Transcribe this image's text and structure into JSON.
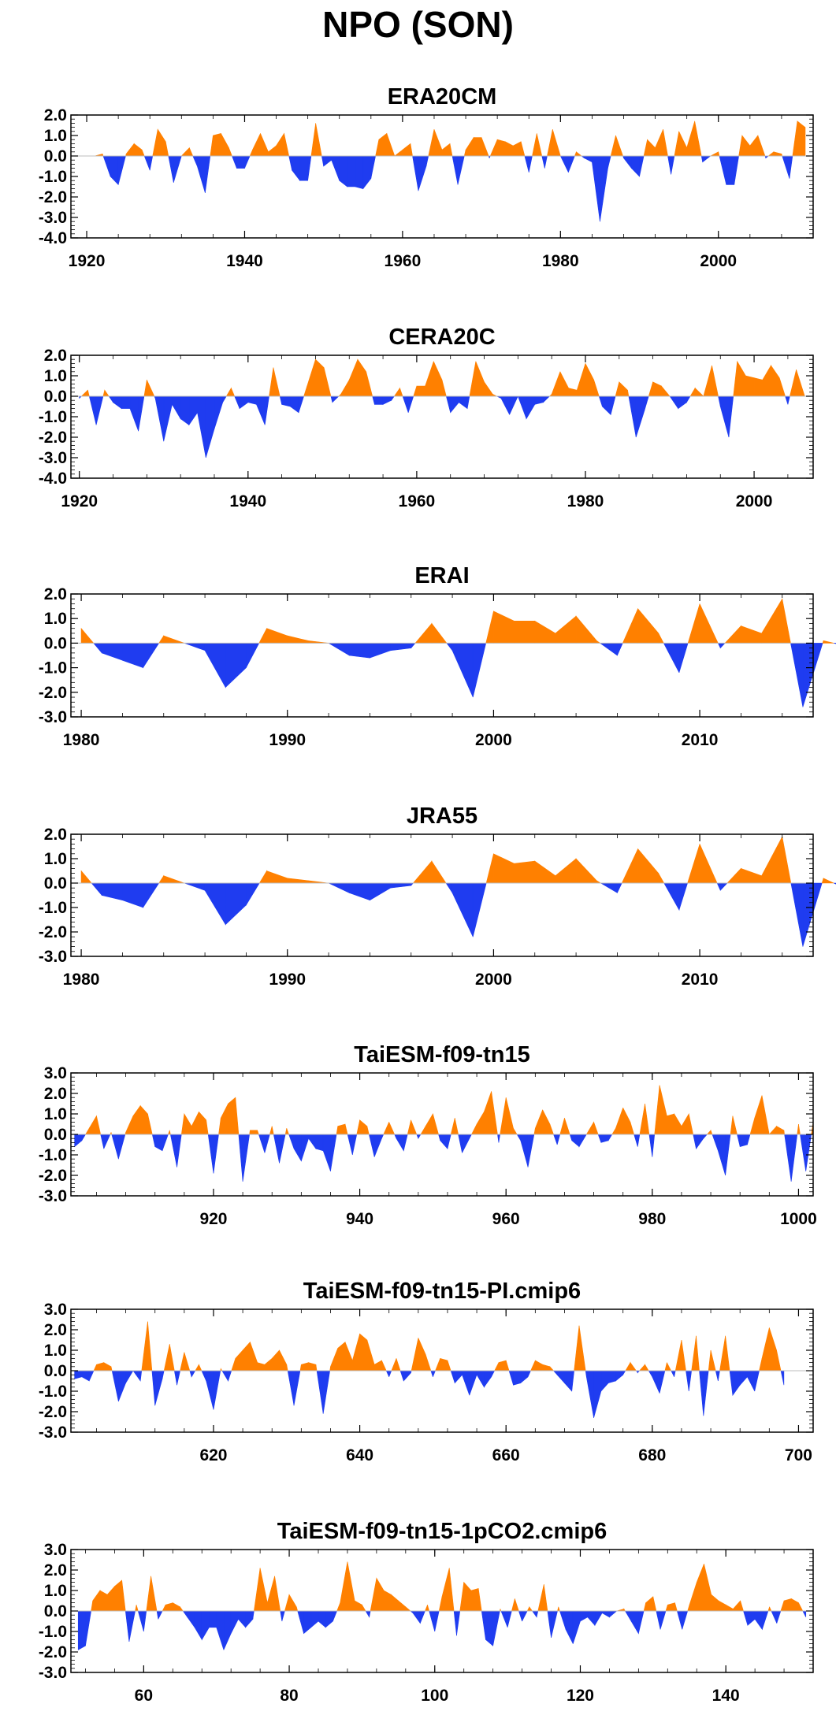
{
  "title": "NPO (SON)",
  "colors": {
    "positive": "#FF8000",
    "negative": "#1F3CF0",
    "frame": "#000000"
  },
  "chart_data": [
    {
      "type": "area",
      "title": "ERA20CM",
      "xlabel": "",
      "ylabel": "",
      "xlim": [
        1918,
        2012
      ],
      "ylim": [
        -4.0,
        2.0
      ],
      "x_ticks": [
        1920,
        1940,
        1960,
        1980,
        2000
      ],
      "y_ticks": [
        2.0,
        1.0,
        0.0,
        -1.0,
        -2.0,
        -3.0,
        -4.0
      ],
      "y_tick_labels": [
        "2.0",
        "1.0",
        "0.0",
        "-1.0",
        "-2.0",
        "-3.0",
        "-4.0"
      ],
      "grid": false,
      "legend": "none",
      "x_start": 1921,
      "x_step": 1,
      "values": [
        0.0,
        0.1,
        -1.0,
        -1.4,
        0.1,
        0.6,
        0.3,
        -0.7,
        1.3,
        0.7,
        -1.3,
        0.0,
        0.4,
        -0.5,
        -1.8,
        1.0,
        1.1,
        0.4,
        -0.6,
        -0.6,
        0.3,
        1.1,
        0.2,
        0.5,
        1.1,
        -0.7,
        -1.2,
        -1.2,
        1.6,
        -0.5,
        -0.2,
        -1.2,
        -1.5,
        -1.5,
        -1.6,
        -1.1,
        0.8,
        1.1,
        0.0,
        0.3,
        0.6,
        -1.7,
        -0.5,
        1.3,
        0.3,
        0.6,
        -1.4,
        0.3,
        0.9,
        0.9,
        -0.1,
        0.8,
        0.7,
        0.5,
        0.7,
        -0.8,
        1.1,
        -0.6,
        1.3,
        0.0,
        -0.8,
        0.2,
        -0.1,
        -0.3,
        -3.2,
        -0.6,
        1.0,
        -0.1,
        -0.6,
        -1.0,
        0.8,
        0.4,
        1.3,
        -0.9,
        1.2,
        0.4,
        1.7,
        -0.3,
        0.0,
        0.2,
        -1.4,
        -1.4,
        1.0,
        0.5,
        1.0,
        -0.1,
        0.2,
        0.1,
        -1.1,
        1.7,
        1.4
      ]
    },
    {
      "type": "area",
      "title": "CERA20C",
      "xlabel": "",
      "ylabel": "",
      "xlim": [
        1919,
        2007
      ],
      "ylim": [
        -4.0,
        2.0
      ],
      "x_ticks": [
        1920,
        1940,
        1960,
        1980,
        2000
      ],
      "y_ticks": [
        2.0,
        1.0,
        0.0,
        -1.0,
        -2.0,
        -3.0,
        -4.0
      ],
      "y_tick_labels": [
        "2.0",
        "1.0",
        "0.0",
        "-1.0",
        "-2.0",
        "-3.0",
        "-4.0"
      ],
      "grid": false,
      "legend": "none",
      "x_start": 1920,
      "x_step": 1,
      "values": [
        -0.1,
        0.3,
        -1.4,
        0.3,
        -0.3,
        -0.6,
        -0.6,
        -1.7,
        0.8,
        -0.1,
        -2.2,
        -0.4,
        -1.1,
        -1.4,
        -0.8,
        -3.0,
        -1.6,
        -0.3,
        0.4,
        -0.6,
        -0.3,
        -0.4,
        -1.4,
        1.4,
        -0.4,
        -0.5,
        -0.8,
        0.5,
        1.8,
        1.4,
        -0.3,
        0.1,
        0.8,
        1.8,
        1.2,
        -0.4,
        -0.4,
        -0.2,
        0.4,
        -0.8,
        0.5,
        0.5,
        1.7,
        0.8,
        -0.8,
        -0.3,
        -0.6,
        1.7,
        0.7,
        0.1,
        -0.1,
        -0.9,
        0.0,
        -1.1,
        -0.4,
        -0.3,
        0.1,
        1.2,
        0.4,
        0.3,
        1.6,
        0.8,
        -0.5,
        -0.9,
        0.7,
        0.3,
        -2.0,
        -0.7,
        0.7,
        0.5,
        0.0,
        -0.6,
        -0.3,
        0.4,
        0.0,
        1.5,
        -0.5,
        -2.0,
        1.7,
        1.0,
        0.9,
        0.8,
        1.5,
        0.9,
        -0.4,
        1.3,
        0.0
      ]
    },
    {
      "type": "area",
      "title": "ERAI",
      "xlabel": "",
      "ylabel": "",
      "xlim": [
        1979.5,
        2015.5
      ],
      "ylim": [
        -3.0,
        2.0
      ],
      "x_ticks": [
        1980,
        1990,
        2000,
        2010
      ],
      "y_ticks": [
        2.0,
        1.0,
        0.0,
        -1.0,
        -2.0,
        -3.0
      ],
      "y_tick_labels": [
        "2.0",
        "1.0",
        "0.0",
        "-1.0",
        "-2.0",
        "-3.0"
      ],
      "grid": false,
      "legend": "none",
      "x_start": 1980,
      "x_step": 1,
      "values": [
        0.6,
        -0.4,
        -0.7,
        -1.0,
        0.3,
        0.0,
        -0.3,
        -1.8,
        -1.0,
        0.6,
        0.3,
        0.1,
        0.0,
        -0.5,
        -0.6,
        -0.3,
        -0.2,
        0.8,
        -0.3,
        -2.2,
        1.3,
        0.9,
        0.9,
        0.4,
        1.1,
        0.1,
        -0.5,
        1.4,
        0.4,
        -1.2,
        1.6,
        -0.2,
        0.7,
        0.4,
        1.8,
        -2.6,
        0.1,
        -0.1
      ]
    },
    {
      "type": "area",
      "title": "JRA55",
      "xlabel": "",
      "ylabel": "",
      "xlim": [
        1979.5,
        2015.5
      ],
      "ylim": [
        -3.0,
        2.0
      ],
      "x_ticks": [
        1980,
        1990,
        2000,
        2010
      ],
      "y_ticks": [
        2.0,
        1.0,
        0.0,
        -1.0,
        -2.0,
        -3.0
      ],
      "y_tick_labels": [
        "2.0",
        "1.0",
        "0.0",
        "-1.0",
        "-2.0",
        "-3.0"
      ],
      "grid": false,
      "legend": "none",
      "x_start": 1980,
      "x_step": 1,
      "values": [
        0.5,
        -0.5,
        -0.7,
        -1.0,
        0.3,
        0.0,
        -0.3,
        -1.7,
        -0.9,
        0.5,
        0.2,
        0.1,
        0.0,
        -0.4,
        -0.7,
        -0.2,
        -0.1,
        0.9,
        -0.4,
        -2.2,
        1.2,
        0.8,
        0.9,
        0.3,
        1.0,
        0.1,
        -0.4,
        1.4,
        0.4,
        -1.1,
        1.6,
        -0.3,
        0.6,
        0.3,
        1.9,
        -2.6,
        0.2,
        -0.2
      ]
    },
    {
      "type": "area",
      "title": "TaiESM-f09-tn15",
      "xlabel": "",
      "ylabel": "",
      "xlim": [
        900.5,
        1002
      ],
      "ylim": [
        -3.0,
        3.0
      ],
      "x_ticks": [
        920,
        940,
        960,
        980,
        1000
      ],
      "y_ticks": [
        3.0,
        2.0,
        1.0,
        0.0,
        -1.0,
        -2.0,
        -3.0
      ],
      "y_tick_labels": [
        "3.0",
        "2.0",
        "1.0",
        "0.0",
        "-1.0",
        "-2.0",
        "-3.0"
      ],
      "grid": false,
      "legend": "none",
      "x_start": 901,
      "x_step": 1,
      "values": [
        -0.6,
        -0.3,
        0.3,
        0.9,
        -0.7,
        0.1,
        -1.2,
        0.1,
        0.9,
        1.4,
        1.0,
        -0.6,
        -0.8,
        0.2,
        -1.6,
        1.0,
        0.4,
        1.1,
        0.7,
        -1.9,
        0.8,
        1.5,
        1.8,
        -2.3,
        0.2,
        0.2,
        -0.9,
        0.4,
        -1.4,
        0.3,
        -0.7,
        -1.3,
        -0.2,
        -0.7,
        -0.8,
        -1.8,
        0.4,
        0.5,
        -1.0,
        0.7,
        0.4,
        -1.1,
        -0.2,
        0.6,
        -0.2,
        -0.8,
        0.7,
        -0.2,
        0.4,
        1.0,
        -0.3,
        -0.7,
        0.8,
        -0.9,
        -0.2,
        0.5,
        1.1,
        2.1,
        -0.4,
        1.8,
        0.3,
        -0.3,
        -1.6,
        0.3,
        1.2,
        0.5,
        -0.5,
        0.8,
        -0.3,
        -0.6,
        0.0,
        0.6,
        -0.4,
        -0.3,
        0.3,
        1.3,
        0.6,
        -0.6,
        1.5,
        -1.1,
        2.4,
        0.9,
        1.0,
        0.4,
        1.0,
        -0.7,
        -0.2,
        0.2,
        -0.8,
        -2.0,
        0.9,
        -0.6,
        -0.5,
        0.8,
        1.9,
        0.0,
        0.4,
        0.2,
        -2.3,
        0.5,
        -1.8,
        0.6
      ]
    },
    {
      "type": "area",
      "title": "TaiESM-f09-tn15-PI.cmip6",
      "xlabel": "",
      "ylabel": "",
      "xlim": [
        600.5,
        702
      ],
      "ylim": [
        -3.0,
        3.0
      ],
      "x_ticks": [
        620,
        640,
        660,
        680,
        700
      ],
      "y_ticks": [
        3.0,
        2.0,
        1.0,
        0.0,
        -1.0,
        -2.0,
        -3.0
      ],
      "y_tick_labels": [
        "3.0",
        "2.0",
        "1.0",
        "0.0",
        "-1.0",
        "-2.0",
        "-3.0"
      ],
      "grid": false,
      "legend": "none",
      "x_start": 601,
      "x_step": 1,
      "values": [
        -0.4,
        -0.3,
        -0.5,
        0.3,
        0.4,
        0.2,
        -1.5,
        -0.6,
        0.0,
        -0.5,
        2.4,
        -1.7,
        -0.4,
        1.3,
        -0.7,
        0.9,
        -0.3,
        0.3,
        -0.5,
        -1.9,
        0.1,
        -0.5,
        0.6,
        1.0,
        1.4,
        0.4,
        0.3,
        0.6,
        1.0,
        0.3,
        -1.7,
        0.3,
        0.4,
        0.3,
        -2.1,
        0.2,
        1.1,
        1.4,
        0.5,
        1.8,
        1.5,
        0.3,
        0.5,
        -0.3,
        0.6,
        -0.5,
        -0.1,
        1.6,
        0.8,
        -0.3,
        0.6,
        0.5,
        -0.6,
        -0.2,
        -1.2,
        -0.2,
        -0.8,
        -0.3,
        0.4,
        0.5,
        -0.7,
        -0.6,
        -0.3,
        0.5,
        0.3,
        0.2,
        -0.2,
        -0.6,
        -1.0,
        2.2,
        -0.3,
        -2.3,
        -1.0,
        -0.6,
        -0.5,
        -0.2,
        0.4,
        -0.1,
        0.3,
        -0.3,
        -1.1,
        0.4,
        -0.3,
        1.5,
        -1.0,
        1.7,
        -2.2,
        1.0,
        -0.5,
        1.7,
        -1.2,
        -0.7,
        -0.3,
        -1.0,
        0.6,
        2.1,
        1.0,
        -0.7
      ]
    },
    {
      "type": "area",
      "title": "TaiESM-f09-tn15-1pCO2.cmip6",
      "xlabel": "",
      "ylabel": "",
      "xlim": [
        50,
        152
      ],
      "ylim": [
        -3.0,
        3.0
      ],
      "x_ticks": [
        60,
        80,
        100,
        120,
        140
      ],
      "y_ticks": [
        3.0,
        2.0,
        1.0,
        0.0,
        -1.0,
        -2.0,
        -3.0
      ],
      "y_tick_labels": [
        "3.0",
        "2.0",
        "1.0",
        "0.0",
        "-1.0",
        "-2.0",
        "-3.0"
      ],
      "grid": false,
      "legend": "none",
      "x_start": 51,
      "x_step": 1,
      "values": [
        -1.9,
        -1.7,
        0.5,
        1.0,
        0.8,
        1.2,
        1.5,
        -1.5,
        0.3,
        -1.0,
        1.7,
        -0.4,
        0.3,
        0.4,
        0.2,
        -0.3,
        -0.8,
        -1.4,
        -0.8,
        -0.8,
        -1.9,
        -1.1,
        -0.4,
        -0.8,
        -0.4,
        2.1,
        0.4,
        1.7,
        -0.5,
        0.8,
        0.2,
        -1.1,
        -0.8,
        -0.5,
        -0.8,
        -0.5,
        0.4,
        2.4,
        0.5,
        0.3,
        -0.3,
        1.6,
        1.0,
        0.8,
        0.5,
        0.2,
        -0.1,
        -0.6,
        0.3,
        -1.0,
        0.7,
        2.1,
        -1.2,
        1.4,
        1.0,
        1.1,
        -1.4,
        -1.7,
        0.1,
        -0.8,
        0.6,
        -0.5,
        0.2,
        -0.3,
        1.3,
        -1.3,
        0.2,
        -0.9,
        -1.6,
        -0.5,
        -0.3,
        -0.7,
        -0.1,
        -0.3,
        0.0,
        0.1,
        -0.5,
        -1.1,
        0.4,
        0.7,
        -0.9,
        0.3,
        0.4,
        -0.9,
        0.3,
        1.4,
        2.3,
        0.8,
        0.5,
        0.3,
        0.1,
        0.5,
        -0.7,
        -0.4,
        -0.9,
        0.2,
        -0.6,
        0.5,
        0.6,
        0.4,
        -0.3
      ]
    }
  ]
}
